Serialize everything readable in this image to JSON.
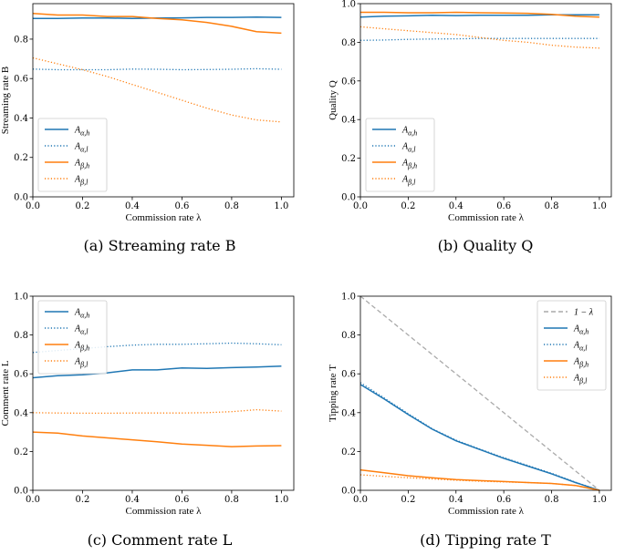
{
  "colors": {
    "blue": "#1f77b4",
    "orange": "#ff7f0e",
    "gray": "#aaaaaa"
  },
  "chart_data": [
    {
      "type": "line",
      "caption": "(a) Streaming rate B",
      "xlabel": "Commission rate λ",
      "ylabel": "Streaming rate B",
      "xlim": [
        0,
        1.05
      ],
      "ylim": [
        0,
        0.98
      ],
      "xticks": [
        0.0,
        0.2,
        0.4,
        0.6,
        0.8,
        1.0
      ],
      "xtick_labels": [
        "0.0",
        "0.2",
        "0.4",
        "0.6",
        "0.8",
        "1.0"
      ],
      "yticks": [
        0,
        0.2,
        0.4,
        0.6,
        0.8
      ],
      "ytick_labels": [
        "0.0",
        "0.2",
        "0.4",
        "0.6",
        "0.8"
      ],
      "legend_position": "lower-left",
      "x": [
        0,
        0.1,
        0.2,
        0.3,
        0.4,
        0.5,
        0.6,
        0.7,
        0.8,
        0.9,
        1.0
      ],
      "series": [
        {
          "name": "Aα,h",
          "color": "blue",
          "style": "solid",
          "values": [
            0.905,
            0.905,
            0.907,
            0.907,
            0.905,
            0.907,
            0.908,
            0.91,
            0.91,
            0.912,
            0.91
          ]
        },
        {
          "name": "Aα,l",
          "color": "blue",
          "style": "dotted",
          "values": [
            0.648,
            0.645,
            0.645,
            0.645,
            0.648,
            0.647,
            0.645,
            0.646,
            0.647,
            0.65,
            0.647
          ]
        },
        {
          "name": "Aβ,h",
          "color": "orange",
          "style": "solid",
          "values": [
            0.93,
            0.922,
            0.922,
            0.915,
            0.915,
            0.905,
            0.898,
            0.885,
            0.865,
            0.838,
            0.83
          ]
        },
        {
          "name": "Aβ,l",
          "color": "orange",
          "style": "dotted",
          "values": [
            0.705,
            0.675,
            0.645,
            0.61,
            0.57,
            0.53,
            0.49,
            0.45,
            0.415,
            0.39,
            0.38
          ]
        }
      ]
    },
    {
      "type": "line",
      "caption": "(b) Quality Q",
      "xlabel": "Commission rate λ",
      "ylabel": "Quality Q",
      "xlim": [
        0,
        1.05
      ],
      "ylim": [
        0,
        1.0
      ],
      "xticks": [
        0.0,
        0.2,
        0.4,
        0.6,
        0.8,
        1.0
      ],
      "xtick_labels": [
        "0.0",
        "0.2",
        "0.4",
        "0.6",
        "0.8",
        "1.0"
      ],
      "yticks": [
        0,
        0.2,
        0.4,
        0.6,
        0.8,
        1.0
      ],
      "ytick_labels": [
        "0.0",
        "0.2",
        "0.4",
        "0.6",
        "0.8",
        "1.0"
      ],
      "legend_position": "lower-left",
      "x": [
        0,
        0.1,
        0.2,
        0.3,
        0.4,
        0.5,
        0.6,
        0.7,
        0.8,
        0.9,
        1.0
      ],
      "series": [
        {
          "name": "Aα,h",
          "color": "blue",
          "style": "solid",
          "values": [
            0.93,
            0.935,
            0.937,
            0.94,
            0.938,
            0.94,
            0.94,
            0.94,
            0.942,
            0.942,
            0.942
          ]
        },
        {
          "name": "Aα,l",
          "color": "blue",
          "style": "dotted",
          "values": [
            0.81,
            0.812,
            0.815,
            0.817,
            0.818,
            0.82,
            0.82,
            0.82,
            0.82,
            0.82,
            0.82
          ]
        },
        {
          "name": "Aβ,h",
          "color": "orange",
          "style": "solid",
          "values": [
            0.955,
            0.955,
            0.953,
            0.953,
            0.955,
            0.953,
            0.952,
            0.95,
            0.945,
            0.935,
            0.93
          ]
        },
        {
          "name": "Aβ,l",
          "color": "orange",
          "style": "dotted",
          "values": [
            0.88,
            0.87,
            0.86,
            0.85,
            0.84,
            0.825,
            0.81,
            0.8,
            0.785,
            0.775,
            0.77
          ]
        }
      ]
    },
    {
      "type": "line",
      "caption": "(c) Comment rate L",
      "xlabel": "Commission rate λ",
      "ylabel": "Comment rate L",
      "xlim": [
        0,
        1.05
      ],
      "ylim": [
        0,
        1.0
      ],
      "xticks": [
        0.0,
        0.2,
        0.4,
        0.6,
        0.8,
        1.0
      ],
      "xtick_labels": [
        "0.0",
        "0.2",
        "0.4",
        "0.6",
        "0.8",
        "1.0"
      ],
      "yticks": [
        0,
        0.2,
        0.4,
        0.6,
        0.8,
        1.0
      ],
      "ytick_labels": [
        "0.0",
        "0.2",
        "0.4",
        "0.6",
        "0.8",
        "1.0"
      ],
      "legend_position": "top-left",
      "x": [
        0,
        0.1,
        0.2,
        0.3,
        0.4,
        0.5,
        0.6,
        0.7,
        0.8,
        0.9,
        1.0
      ],
      "series": [
        {
          "name": "Aα,h",
          "color": "blue",
          "style": "solid",
          "values": [
            0.58,
            0.59,
            0.595,
            0.605,
            0.62,
            0.62,
            0.63,
            0.628,
            0.632,
            0.635,
            0.64
          ]
        },
        {
          "name": "Aα,l",
          "color": "blue",
          "style": "dotted",
          "values": [
            0.71,
            0.72,
            0.73,
            0.74,
            0.748,
            0.752,
            0.752,
            0.755,
            0.758,
            0.755,
            0.75
          ]
        },
        {
          "name": "Aβ,h",
          "color": "orange",
          "style": "solid",
          "values": [
            0.3,
            0.295,
            0.28,
            0.27,
            0.26,
            0.25,
            0.238,
            0.232,
            0.225,
            0.228,
            0.23
          ]
        },
        {
          "name": "Aβ,l",
          "color": "orange",
          "style": "dotted",
          "values": [
            0.4,
            0.398,
            0.397,
            0.397,
            0.398,
            0.398,
            0.398,
            0.4,
            0.405,
            0.415,
            0.408
          ]
        }
      ]
    },
    {
      "type": "line",
      "caption": "(d) Tipping rate T",
      "xlabel": "Commission rate λ",
      "ylabel": "Tipping rate T",
      "xlim": [
        0,
        1.05
      ],
      "ylim": [
        0,
        1.0
      ],
      "xticks": [
        0.0,
        0.2,
        0.4,
        0.6,
        0.8,
        1.0
      ],
      "xtick_labels": [
        "0.0",
        "0.2",
        "0.4",
        "0.6",
        "0.8",
        "1.0"
      ],
      "yticks": [
        0,
        0.2,
        0.4,
        0.6,
        0.8,
        1.0
      ],
      "ytick_labels": [
        "0.0",
        "0.2",
        "0.4",
        "0.6",
        "0.8",
        "1.0"
      ],
      "legend_position": "top-right",
      "x": [
        0,
        0.1,
        0.2,
        0.3,
        0.4,
        0.5,
        0.6,
        0.7,
        0.8,
        0.9,
        1.0
      ],
      "series": [
        {
          "name": "1 − λ",
          "color": "gray",
          "style": "dashed",
          "values": [
            1.0,
            0.9,
            0.8,
            0.7,
            0.6,
            0.5,
            0.4,
            0.3,
            0.2,
            0.1,
            0.0
          ]
        },
        {
          "name": "Aα,h",
          "color": "blue",
          "style": "solid",
          "values": [
            0.545,
            0.47,
            0.39,
            0.315,
            0.255,
            0.21,
            0.165,
            0.125,
            0.085,
            0.04,
            0.0
          ]
        },
        {
          "name": "Aα,l",
          "color": "blue",
          "style": "dotted",
          "values": [
            0.555,
            0.475,
            0.395,
            0.318,
            0.258,
            0.212,
            0.168,
            0.128,
            0.088,
            0.042,
            0.0
          ]
        },
        {
          "name": "Aβ,h",
          "color": "orange",
          "style": "solid",
          "values": [
            0.105,
            0.09,
            0.075,
            0.065,
            0.055,
            0.05,
            0.045,
            0.04,
            0.035,
            0.025,
            0.0
          ]
        },
        {
          "name": "Aβ,l",
          "color": "orange",
          "style": "dotted",
          "values": [
            0.08,
            0.072,
            0.065,
            0.058,
            0.052,
            0.047,
            0.043,
            0.04,
            0.035,
            0.025,
            0.0
          ]
        }
      ]
    }
  ]
}
